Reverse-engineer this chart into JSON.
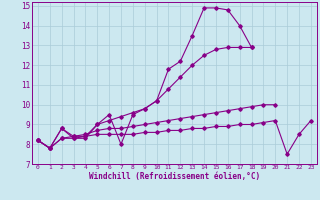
{
  "xlabel": "Windchill (Refroidissement éolien,°C)",
  "xlim": [
    -0.5,
    23.5
  ],
  "ylim": [
    7,
    15.2
  ],
  "xticks": [
    0,
    1,
    2,
    3,
    4,
    5,
    6,
    7,
    8,
    9,
    10,
    11,
    12,
    13,
    14,
    15,
    16,
    17,
    18,
    19,
    20,
    21,
    22,
    23
  ],
  "yticks": [
    7,
    8,
    9,
    10,
    11,
    12,
    13,
    14,
    15
  ],
  "bg_color": "#cce8f0",
  "grid_color": "#aaccd8",
  "line_color": "#880088",
  "lines": [
    {
      "x": [
        0,
        1,
        2,
        3,
        4,
        5,
        6,
        7,
        8,
        9,
        10,
        11,
        12,
        13,
        14,
        15,
        16,
        17,
        18
      ],
      "y": [
        8.2,
        7.8,
        8.8,
        8.3,
        8.3,
        9.0,
        9.5,
        8.0,
        9.5,
        9.8,
        10.2,
        11.8,
        12.2,
        13.5,
        14.9,
        14.9,
        14.8,
        14.0,
        12.9
      ]
    },
    {
      "x": [
        0,
        1,
        2,
        3,
        4,
        5,
        6,
        7,
        8,
        9,
        10,
        11,
        12,
        13,
        14,
        15,
        16,
        17,
        18
      ],
      "y": [
        8.2,
        7.8,
        8.8,
        8.4,
        8.4,
        9.0,
        9.2,
        9.4,
        9.6,
        9.8,
        10.2,
        10.8,
        11.4,
        12.0,
        12.5,
        12.8,
        12.9,
        12.9,
        12.9
      ]
    },
    {
      "x": [
        0,
        1,
        2,
        3,
        4,
        5,
        6,
        7,
        8,
        9,
        10,
        11,
        12,
        13,
        14,
        15,
        16,
        17,
        18,
        19,
        20
      ],
      "y": [
        8.2,
        7.8,
        8.3,
        8.4,
        8.5,
        8.7,
        8.8,
        8.8,
        8.9,
        9.0,
        9.1,
        9.2,
        9.3,
        9.4,
        9.5,
        9.6,
        9.7,
        9.8,
        9.9,
        10.0,
        10.0
      ]
    },
    {
      "x": [
        0,
        1,
        2,
        3,
        4,
        5,
        6,
        7,
        8,
        9,
        10,
        11,
        12,
        13,
        14,
        15,
        16,
        17,
        18,
        19,
        20,
        21,
        22,
        23
      ],
      "y": [
        8.2,
        7.8,
        8.3,
        8.3,
        8.4,
        8.5,
        8.5,
        8.5,
        8.5,
        8.6,
        8.6,
        8.7,
        8.7,
        8.8,
        8.8,
        8.9,
        8.9,
        9.0,
        9.0,
        9.1,
        9.2,
        7.5,
        8.5,
        9.2
      ]
    }
  ]
}
